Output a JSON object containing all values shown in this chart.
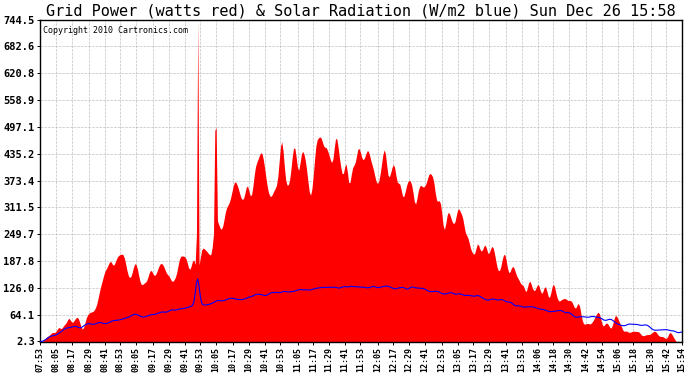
{
  "title": "Grid Power (watts red) & Solar Radiation (W/m2 blue) Sun Dec 26 15:58",
  "copyright": "Copyright 2010 Cartronics.com",
  "yticks": [
    2.3,
    64.1,
    126.0,
    187.8,
    249.7,
    311.5,
    373.4,
    435.2,
    497.1,
    558.9,
    620.8,
    682.6,
    744.5
  ],
  "ymin": 0,
  "ymax": 744.5,
  "bg_color": "#ffffff",
  "plot_bg_color": "#ffffff",
  "grid_color": "#b0b0b0",
  "red_fill_color": "red",
  "blue_line_color": "blue",
  "x_label_fontsize": 6.0,
  "title_fontsize": 11,
  "time_labels": [
    "07:53",
    "08:05",
    "08:17",
    "08:29",
    "08:41",
    "08:53",
    "09:05",
    "09:17",
    "09:29",
    "09:41",
    "09:53",
    "10:05",
    "10:17",
    "10:29",
    "10:41",
    "10:53",
    "11:05",
    "11:17",
    "11:29",
    "11:41",
    "11:53",
    "12:05",
    "12:17",
    "12:29",
    "12:41",
    "12:53",
    "13:05",
    "13:17",
    "13:29",
    "13:41",
    "13:53",
    "14:06",
    "14:18",
    "14:30",
    "14:42",
    "14:54",
    "15:06",
    "15:18",
    "15:30",
    "15:42",
    "15:54"
  ]
}
